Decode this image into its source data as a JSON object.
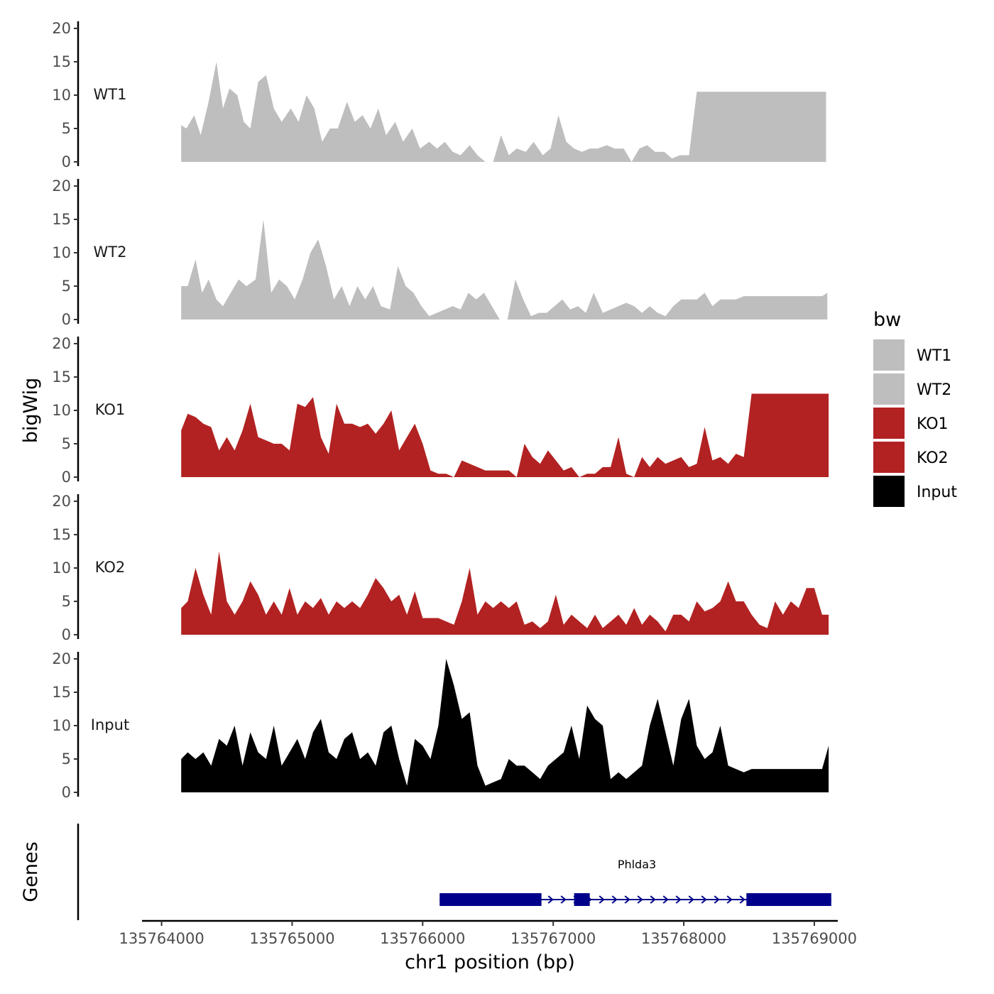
{
  "chart_data": {
    "type": "area",
    "title": "",
    "ylabel": "bigWig",
    "xlabel": "chr1 position (bp)",
    "xlim": [
      135763850,
      135769180
    ],
    "ylim": [
      0,
      20
    ],
    "y_ticks": [
      "0",
      "5",
      "10",
      "15",
      "20"
    ],
    "x_ticks": [
      {
        "value": 135764000,
        "label": "135764000"
      },
      {
        "value": 135765000,
        "label": "135765000"
      },
      {
        "value": 135766000,
        "label": "135766000"
      },
      {
        "value": 135767000,
        "label": "135767000"
      },
      {
        "value": 135768000,
        "label": "135768000"
      },
      {
        "value": 135769000,
        "label": "135769000"
      }
    ],
    "legend_title": "bw",
    "legend": [
      {
        "name": "WT1",
        "color": "#bebebe"
      },
      {
        "name": "WT2",
        "color": "#bebebe"
      },
      {
        "name": "KO1",
        "color": "#b22222"
      },
      {
        "name": "KO2",
        "color": "#b22222"
      },
      {
        "name": "Input",
        "color": "#000000"
      }
    ],
    "series": [
      {
        "name": "WT1",
        "color": "#bebebe",
        "x": [
          135764150,
          135764190,
          135764250,
          135764300,
          135764360,
          135764420,
          135764470,
          135764520,
          135764580,
          135764630,
          135764680,
          135764740,
          135764800,
          135764860,
          135764920,
          135764990,
          135765050,
          135765110,
          135765170,
          135765230,
          135765290,
          135765350,
          135765420,
          135765480,
          135765540,
          135765600,
          135765660,
          135765720,
          135765790,
          135765850,
          135765920,
          135765980,
          135766050,
          135766110,
          135766170,
          135766230,
          135766290,
          135766360,
          135766420,
          135766480,
          135766540,
          135766600,
          135766660,
          135766720,
          135766790,
          135766850,
          135766920,
          135766980,
          135767040,
          135767100,
          135767160,
          135767220,
          135767280,
          135767340,
          135767410,
          135767470,
          135767540,
          135767600,
          135767660,
          135767720,
          135767780,
          135767850,
          135767910,
          135767970,
          135768040,
          135768100,
          135768160,
          135768230,
          135768290,
          135768350,
          135768410,
          135768470,
          135768540,
          135768600,
          135768660,
          135768720,
          135768780,
          135768850,
          135768910,
          135768970,
          135769030,
          135769090
        ],
        "values": [
          5.5,
          5,
          7,
          4,
          9,
          15,
          8,
          11,
          10,
          6,
          5,
          12,
          13,
          8,
          6,
          8,
          6,
          10,
          8,
          3,
          5,
          5,
          9,
          6,
          7,
          5,
          8,
          4,
          6,
          3,
          5,
          2,
          3,
          2,
          3,
          1.5,
          1,
          2.5,
          1,
          0,
          0,
          4,
          1,
          2,
          1.5,
          3,
          1,
          2,
          7,
          3,
          2,
          1.5,
          2,
          2,
          2.5,
          2,
          2,
          0,
          2,
          2.5,
          1.5,
          1.5,
          0.5,
          1,
          1,
          10.5,
          10.5,
          10.5,
          10.5,
          10.5,
          10.5,
          10.5,
          10.5,
          10.5,
          10.5,
          10.5,
          10.5,
          10.5,
          10.5,
          10.5,
          10.5,
          10.5
        ]
      },
      {
        "name": "WT2",
        "color": "#bebebe",
        "x": [
          135764150,
          135764200,
          135764260,
          135764310,
          135764360,
          135764420,
          135764470,
          135764530,
          135764590,
          135764650,
          135764720,
          135764780,
          135764840,
          135764900,
          135764960,
          135765020,
          135765080,
          135765140,
          135765200,
          135765260,
          135765320,
          135765380,
          135765440,
          135765500,
          135765560,
          135765620,
          135765680,
          135765750,
          135765810,
          135765870,
          135765930,
          135765990,
          135766050,
          135766110,
          135766170,
          135766230,
          135766290,
          135766350,
          135766410,
          135766470,
          135766530,
          135766590,
          135766650,
          135766710,
          135766770,
          135766830,
          135766890,
          135766950,
          135767010,
          135767070,
          135767130,
          135767190,
          135767250,
          135767310,
          135767380,
          135767440,
          135767500,
          135767560,
          135767620,
          135767680,
          135767740,
          135767800,
          135767860,
          135767920,
          135767980,
          135768040,
          135768100,
          135768160,
          135768220,
          135768280,
          135768340,
          135768400,
          135768460,
          135768520,
          135768580,
          135768640,
          135768700,
          135768760,
          135768820,
          135768880,
          135768940,
          135769000,
          135769060,
          135769100
        ],
        "values": [
          5,
          5,
          9,
          4,
          6,
          3,
          2,
          4,
          6,
          5,
          6,
          15,
          4,
          6,
          5,
          3,
          6,
          10,
          12,
          8,
          3,
          5,
          2,
          5,
          3,
          5,
          2,
          1.5,
          8,
          5,
          4,
          2,
          0.5,
          1,
          1.5,
          2,
          1.5,
          4,
          3,
          4,
          2,
          0,
          0,
          6,
          3,
          0.5,
          1,
          1,
          2,
          3,
          1.5,
          2,
          1,
          4,
          1,
          1.5,
          2,
          2.5,
          2,
          1,
          2,
          1,
          0.5,
          2,
          3,
          3,
          3,
          4,
          2,
          3,
          3,
          3,
          3.5,
          3.5,
          3.5,
          3.5,
          3.5,
          3.5,
          3.5,
          3.5,
          3.5,
          3.5,
          3.5,
          4
        ]
      },
      {
        "name": "KO1",
        "color": "#b22222",
        "x": [
          135764150,
          135764200,
          135764260,
          135764320,
          135764380,
          135764440,
          135764500,
          135764560,
          135764620,
          135764680,
          135764740,
          135764800,
          135764860,
          135764920,
          135764980,
          135765040,
          135765100,
          135765160,
          135765220,
          135765280,
          135765340,
          135765400,
          135765460,
          135765520,
          135765580,
          135765640,
          135765700,
          135765760,
          135765820,
          135765880,
          135765940,
          135766000,
          135766060,
          135766120,
          135766180,
          135766240,
          135766300,
          135766360,
          135766420,
          135766480,
          135766540,
          135766600,
          135766660,
          135766720,
          135766780,
          135766840,
          135766900,
          135766960,
          135767020,
          135767080,
          135767140,
          135767200,
          135767260,
          135767320,
          135767380,
          135767440,
          135767500,
          135767560,
          135767620,
          135767680,
          135767740,
          135767800,
          135767860,
          135767920,
          135767980,
          135768040,
          135768100,
          135768160,
          135768220,
          135768280,
          135768340,
          135768400,
          135768460,
          135768520,
          135768580,
          135768640,
          135768700,
          135768760,
          135768820,
          135768880,
          135768940,
          135769000,
          135769060,
          135769110
        ],
        "values": [
          7,
          9.5,
          9,
          8,
          7.5,
          4,
          6,
          4,
          7,
          11,
          6,
          5.5,
          5,
          5,
          4,
          11,
          10.5,
          12,
          6,
          3.5,
          11,
          8,
          8,
          7.5,
          8,
          6.5,
          8,
          10,
          4,
          6,
          8,
          5,
          1,
          0.5,
          0.5,
          0,
          2.5,
          2,
          1.5,
          1,
          1,
          1,
          1,
          0,
          5,
          3,
          2,
          4,
          2.5,
          1,
          1.5,
          0,
          0.5,
          0.5,
          1.5,
          1.5,
          6,
          0.5,
          0,
          3,
          1.5,
          3,
          2,
          2.5,
          3,
          1.5,
          2,
          7.5,
          2.5,
          3,
          2,
          3.5,
          3,
          12.5,
          12.5,
          12.5,
          12.5,
          12.5,
          12.5,
          12.5,
          12.5,
          12.5,
          12.5,
          12.5
        ]
      },
      {
        "name": "KO2",
        "color": "#b22222",
        "x": [
          135764150,
          135764200,
          135764260,
          135764320,
          135764380,
          135764440,
          135764500,
          135764560,
          135764620,
          135764680,
          135764740,
          135764800,
          135764860,
          135764920,
          135764980,
          135765040,
          135765100,
          135765160,
          135765220,
          135765280,
          135765340,
          135765400,
          135765460,
          135765520,
          135765580,
          135765640,
          135765700,
          135765760,
          135765820,
          135765880,
          135765940,
          135766000,
          135766060,
          135766120,
          135766180,
          135766240,
          135766300,
          135766360,
          135766420,
          135766480,
          135766540,
          135766600,
          135766660,
          135766720,
          135766780,
          135766840,
          135766900,
          135766960,
          135767020,
          135767080,
          135767140,
          135767200,
          135767260,
          135767320,
          135767380,
          135767440,
          135767500,
          135767560,
          135767620,
          135767680,
          135767740,
          135767800,
          135767860,
          135767920,
          135767980,
          135768040,
          135768100,
          135768160,
          135768220,
          135768280,
          135768340,
          135768400,
          135768460,
          135768520,
          135768580,
          135768640,
          135768700,
          135768760,
          135768820,
          135768880,
          135768940,
          135769000,
          135769060,
          135769110
        ],
        "values": [
          4,
          5,
          10,
          6,
          3,
          12.5,
          5,
          3,
          5,
          8,
          6,
          3,
          5,
          3,
          7,
          3,
          5,
          4,
          5.5,
          3,
          5,
          4,
          5,
          4,
          6,
          8.5,
          7,
          5,
          6,
          3,
          6.5,
          2.5,
          2.5,
          2.5,
          2,
          1.5,
          5,
          10,
          3,
          5,
          4,
          5,
          4,
          5,
          1.5,
          2,
          1,
          2,
          6,
          1.5,
          3,
          2,
          1,
          3,
          1,
          2,
          3,
          1.5,
          4,
          1.5,
          3,
          2,
          0.5,
          3,
          3,
          2,
          5,
          3.5,
          4,
          5,
          8,
          5,
          5,
          3,
          1.5,
          1,
          5,
          3,
          5,
          4,
          7,
          7,
          3,
          3
        ]
      },
      {
        "name": "Input",
        "color": "#000000",
        "x": [
          135764150,
          135764200,
          135764260,
          135764320,
          135764380,
          135764440,
          135764500,
          135764560,
          135764620,
          135764680,
          135764740,
          135764800,
          135764860,
          135764920,
          135764980,
          135765040,
          135765100,
          135765160,
          135765220,
          135765280,
          135765340,
          135765400,
          135765460,
          135765520,
          135765580,
          135765640,
          135765700,
          135765760,
          135765820,
          135765880,
          135765940,
          135766000,
          135766060,
          135766120,
          135766180,
          135766240,
          135766300,
          135766360,
          135766420,
          135766480,
          135766540,
          135766600,
          135766660,
          135766720,
          135766780,
          135766840,
          135766900,
          135766960,
          135767020,
          135767080,
          135767140,
          135767200,
          135767260,
          135767320,
          135767380,
          135767440,
          135767500,
          135767560,
          135767620,
          135767680,
          135767740,
          135767800,
          135767860,
          135767920,
          135767980,
          135768040,
          135768100,
          135768160,
          135768220,
          135768280,
          135768340,
          135768400,
          135768460,
          135768520,
          135768580,
          135768640,
          135768700,
          135768760,
          135768820,
          135768880,
          135768940,
          135769000,
          135769060,
          135769110
        ],
        "values": [
          5,
          6,
          5,
          6,
          4,
          8,
          7,
          10,
          4,
          9,
          6,
          5,
          10,
          4,
          6,
          8,
          5,
          9,
          11,
          6,
          5,
          8,
          9,
          5,
          6,
          4,
          9,
          10,
          5,
          1,
          8,
          7,
          5,
          10,
          20,
          16,
          11,
          12,
          4,
          1,
          1.5,
          2,
          5,
          4,
          4,
          3,
          2,
          4,
          5,
          6,
          10,
          5,
          13,
          11,
          10,
          2,
          3,
          2,
          3,
          4,
          10,
          14,
          9,
          4,
          11,
          14,
          7,
          5,
          6,
          10,
          4,
          3.5,
          3,
          3.5,
          3.5,
          3.5,
          3.5,
          3.5,
          3.5,
          3.5,
          3.5,
          3.5,
          3.5,
          7
        ]
      }
    ],
    "genes_label": "Genes",
    "genes": [
      {
        "name": "Phlda3",
        "strand": "+",
        "start": 135766130,
        "end": 135769130,
        "exons": [
          {
            "start": 135766130,
            "end": 135766910
          },
          {
            "start": 135767160,
            "end": 135767280
          },
          {
            "start": 135768480,
            "end": 135769130
          }
        ]
      }
    ]
  }
}
